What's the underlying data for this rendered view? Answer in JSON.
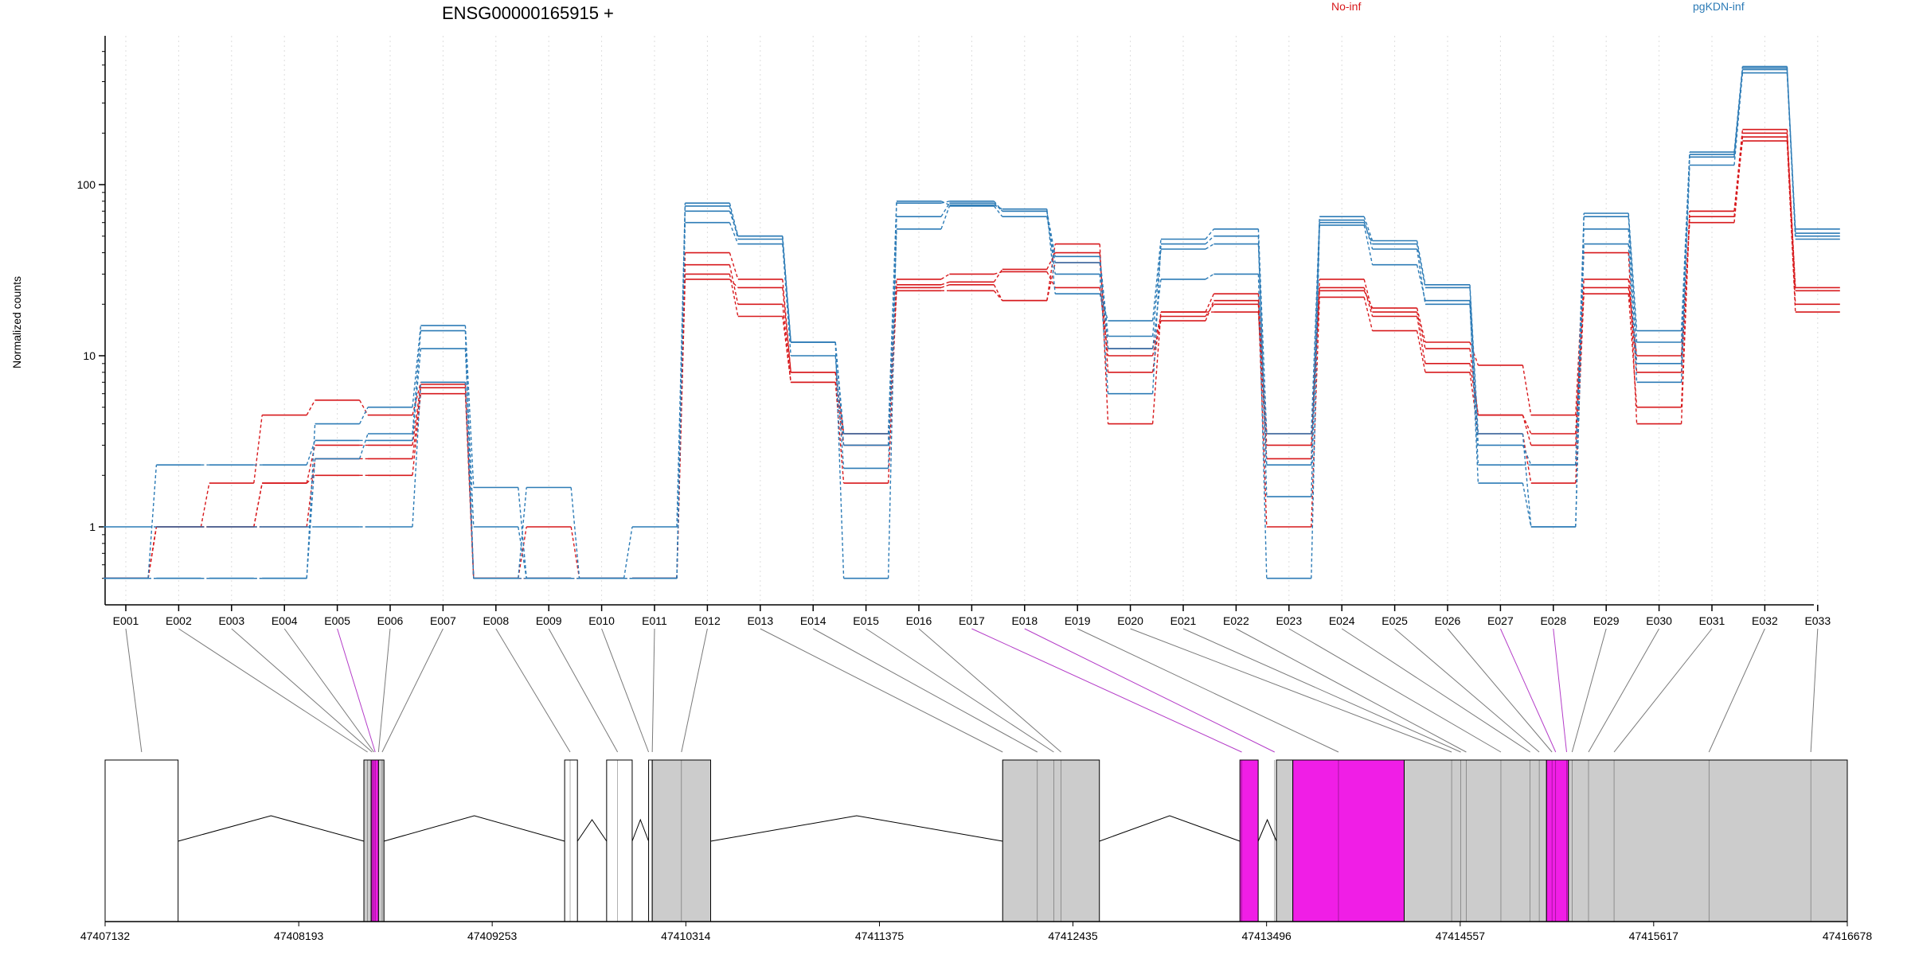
{
  "chart_data": {
    "type": "line",
    "title": "ENSG00000165915 +",
    "ylabel": "Normalized counts",
    "xlabel": "",
    "y_scale": "log",
    "y_ticks": [
      1,
      10,
      100
    ],
    "y_tick_labels": [
      "1",
      "10",
      "100"
    ],
    "grid": "vertical dotted at each exon",
    "legend_placement": "top",
    "colors": {
      "No-inf": "#d7191c",
      "pgKDN-inf": "#2c7bb6",
      "highlight": "#f01ee6",
      "exon_fill": "#cccccc"
    },
    "categories": [
      "E001",
      "E002",
      "E003",
      "E004",
      "E005",
      "E006",
      "E007",
      "E008",
      "E009",
      "E010",
      "E011",
      "E012",
      "E013",
      "E014",
      "E015",
      "E016",
      "E017",
      "E018",
      "E019",
      "E020",
      "E021",
      "E022",
      "E023",
      "E024",
      "E025",
      "E026",
      "E027",
      "E028",
      "E029",
      "E030",
      "E031",
      "E032",
      "E033"
    ],
    "highlighted_exons": [
      "E005",
      "E017",
      "E018",
      "E027",
      "E028"
    ],
    "series": [
      {
        "name": "No-inf",
        "values": [
          0.5,
          1.0,
          1.0,
          1.0,
          2.5,
          2.5,
          6.5,
          0.5,
          0.5,
          0.5,
          0.5,
          30,
          17,
          7,
          1.8,
          25,
          26,
          21,
          35,
          11,
          17,
          20,
          1.0,
          22,
          14,
          8,
          3.5,
          1.8,
          23,
          5,
          70,
          180,
          18
        ]
      },
      {
        "name": "No-inf",
        "values": [
          0.5,
          1.0,
          1.0,
          1.8,
          3.0,
          3.0,
          6.8,
          0.5,
          1.0,
          0.5,
          0.5,
          34,
          20,
          7,
          3.0,
          26,
          27,
          32,
          40,
          8,
          18,
          23,
          3.0,
          25,
          17,
          9,
          4.5,
          3.5,
          28,
          8,
          65,
          200,
          25
        ]
      },
      {
        "name": "No-inf",
        "values": [
          0.5,
          1.0,
          1.8,
          4.5,
          5.5,
          4.5,
          7.0,
          0.5,
          0.5,
          0.5,
          0.5,
          28,
          25,
          8,
          3.5,
          24,
          24,
          21,
          45,
          4,
          18,
          18,
          2.5,
          28,
          18,
          11,
          4.5,
          3.0,
          25,
          10,
          60,
          190,
          20
        ]
      },
      {
        "name": "No-inf",
        "values": [
          0.5,
          1.0,
          1.0,
          1.8,
          2.0,
          2.0,
          6.0,
          0.5,
          0.5,
          0.5,
          0.5,
          40,
          28,
          8,
          3.5,
          28,
          30,
          31,
          25,
          10,
          16,
          21,
          3.5,
          24,
          19,
          12,
          8.8,
          4.5,
          40,
          4,
          70,
          210,
          24
        ]
      },
      {
        "name": "pgKDN-inf",
        "values": [
          1.0,
          1.0,
          1.0,
          1.0,
          1.0,
          1.0,
          7.0,
          0.5,
          0.5,
          0.5,
          0.5,
          60,
          45,
          10,
          2.2,
          55,
          75,
          65,
          35,
          11,
          28,
          30,
          0.5,
          58,
          34,
          21,
          1.8,
          1.0,
          45,
          7,
          130,
          450,
          50
        ]
      },
      {
        "name": "pgKDN-inf",
        "values": [
          0.5,
          2.3,
          2.3,
          2.3,
          3.2,
          3.2,
          11,
          1.0,
          0.5,
          0.5,
          0.5,
          70,
          50,
          12,
          0.5,
          65,
          78,
          70,
          38,
          13,
          42,
          45,
          2.3,
          62,
          42,
          20,
          2.3,
          2.3,
          55,
          9,
          150,
          470,
          55
        ]
      },
      {
        "name": "pgKDN-inf",
        "values": [
          0.5,
          0.5,
          0.5,
          0.5,
          2.5,
          3.5,
          14,
          0.5,
          1.7,
          0.5,
          1.0,
          75,
          48,
          12,
          3.0,
          78,
          80,
          70,
          30,
          6,
          45,
          50,
          1.5,
          60,
          45,
          25,
          3.0,
          2.3,
          65,
          12,
          145,
          480,
          52
        ]
      },
      {
        "name": "pgKDN-inf",
        "values": [
          0.5,
          0.5,
          0.5,
          0.5,
          4.0,
          5.0,
          15,
          1.7,
          0.5,
          0.5,
          0.5,
          78,
          50,
          12,
          3.5,
          80,
          76,
          72,
          23,
          16,
          48,
          55,
          3.5,
          65,
          47,
          26,
          3.5,
          1.0,
          68,
          14,
          155,
          490,
          48
        ]
      }
    ],
    "genomic_axis": {
      "tick_labels": [
        "47407132",
        "47408193",
        "47409253",
        "47410314",
        "47411375",
        "47412435",
        "47413496",
        "47414557",
        "47415617",
        "47416678"
      ],
      "exon_boxes": [
        {
          "start": 47407132,
          "end": 47407532,
          "highlight": false,
          "fill": "white"
        },
        {
          "start": 47408550,
          "end": 47408590,
          "highlight": false,
          "fill": "gray"
        },
        {
          "start": 47408590,
          "end": 47408630,
          "highlight": true,
          "fill": "magenta"
        },
        {
          "start": 47408630,
          "end": 47408660,
          "highlight": false,
          "fill": "gray"
        },
        {
          "start": 47409650,
          "end": 47409720,
          "highlight": false,
          "fill": "white"
        },
        {
          "start": 47409880,
          "end": 47410020,
          "highlight": false,
          "fill": "white"
        },
        {
          "start": 47410110,
          "end": 47410130,
          "highlight": false,
          "fill": "white"
        },
        {
          "start": 47410130,
          "end": 47410450,
          "highlight": false,
          "fill": "gray"
        },
        {
          "start": 47412050,
          "end": 47412580,
          "highlight": false,
          "fill": "gray"
        },
        {
          "start": 47413350,
          "end": 47413450,
          "highlight": true,
          "fill": "magenta"
        },
        {
          "start": 47413550,
          "end": 47413640,
          "highlight": false,
          "fill": "gray"
        },
        {
          "start": 47413640,
          "end": 47414250,
          "highlight": true,
          "fill": "magenta"
        },
        {
          "start": 47414250,
          "end": 47415030,
          "highlight": false,
          "fill": "gray"
        },
        {
          "start": 47415030,
          "end": 47415150,
          "highlight": true,
          "fill": "magenta"
        },
        {
          "start": 47415150,
          "end": 47416678,
          "highlight": false,
          "fill": "gray"
        }
      ],
      "exon_bin_anchors": [
        47407332,
        47408570,
        47408595,
        47408605,
        47408612,
        47408630,
        47408650,
        47409680,
        47409940,
        47410110,
        47410130,
        47410290,
        47412050,
        47412240,
        47412330,
        47412370,
        47413360,
        47413540,
        47413890,
        47414510,
        47414560,
        47414590,
        47414780,
        47414940,
        47414990,
        47415060,
        47415080,
        47415140,
        47415170,
        47415260,
        47415400,
        47415920,
        47416478
      ]
    }
  },
  "legend": {
    "no_inf_label": "No-inf",
    "pgkdn_inf_label": "pgKDN-inf"
  }
}
